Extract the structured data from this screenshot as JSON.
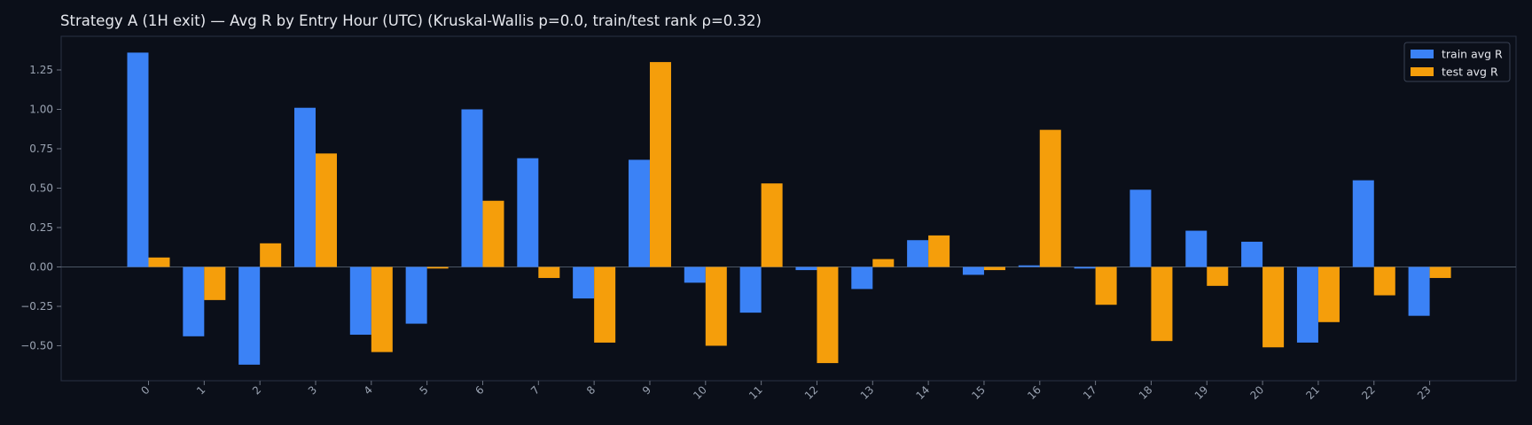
{
  "chart_data": {
    "type": "bar",
    "title": "Strategy A (1H exit) — Avg R by Entry Hour (UTC) (Kruskal-Wallis p=0.0, train/test rank ρ=0.32)",
    "xlabel": "",
    "ylabel": "",
    "categories": [
      "0",
      "1",
      "2",
      "3",
      "4",
      "5",
      "6",
      "7",
      "8",
      "9",
      "10",
      "11",
      "12",
      "13",
      "14",
      "15",
      "16",
      "17",
      "18",
      "19",
      "20",
      "21",
      "22",
      "23"
    ],
    "series": [
      {
        "name": "train avg R",
        "color": "#3b82f6",
        "values": [
          1.36,
          -0.44,
          -0.62,
          1.01,
          -0.43,
          -0.36,
          1.0,
          0.69,
          -0.2,
          0.68,
          -0.1,
          -0.29,
          -0.02,
          -0.14,
          0.17,
          -0.05,
          0.01,
          -0.01,
          0.49,
          0.23,
          0.16,
          -0.48,
          0.55,
          -0.31
        ]
      },
      {
        "name": "test avg R",
        "color": "#f59e0b",
        "values": [
          0.06,
          -0.21,
          0.15,
          0.72,
          -0.54,
          -0.01,
          0.42,
          -0.07,
          -0.48,
          1.3,
          -0.5,
          0.53,
          -0.61,
          0.05,
          0.2,
          -0.02,
          0.87,
          -0.24,
          -0.47,
          -0.12,
          -0.51,
          -0.35,
          -0.18,
          -0.07
        ]
      }
    ],
    "yticks": [
      "1.25",
      "1.00",
      "0.75",
      "0.50",
      "0.25",
      "0.00",
      "−0.25",
      "−0.50"
    ],
    "ylim": [
      -0.72,
      1.46
    ],
    "legend_position": "top-right",
    "grid": false,
    "zero_line": true,
    "xtick_rotation": 45
  }
}
